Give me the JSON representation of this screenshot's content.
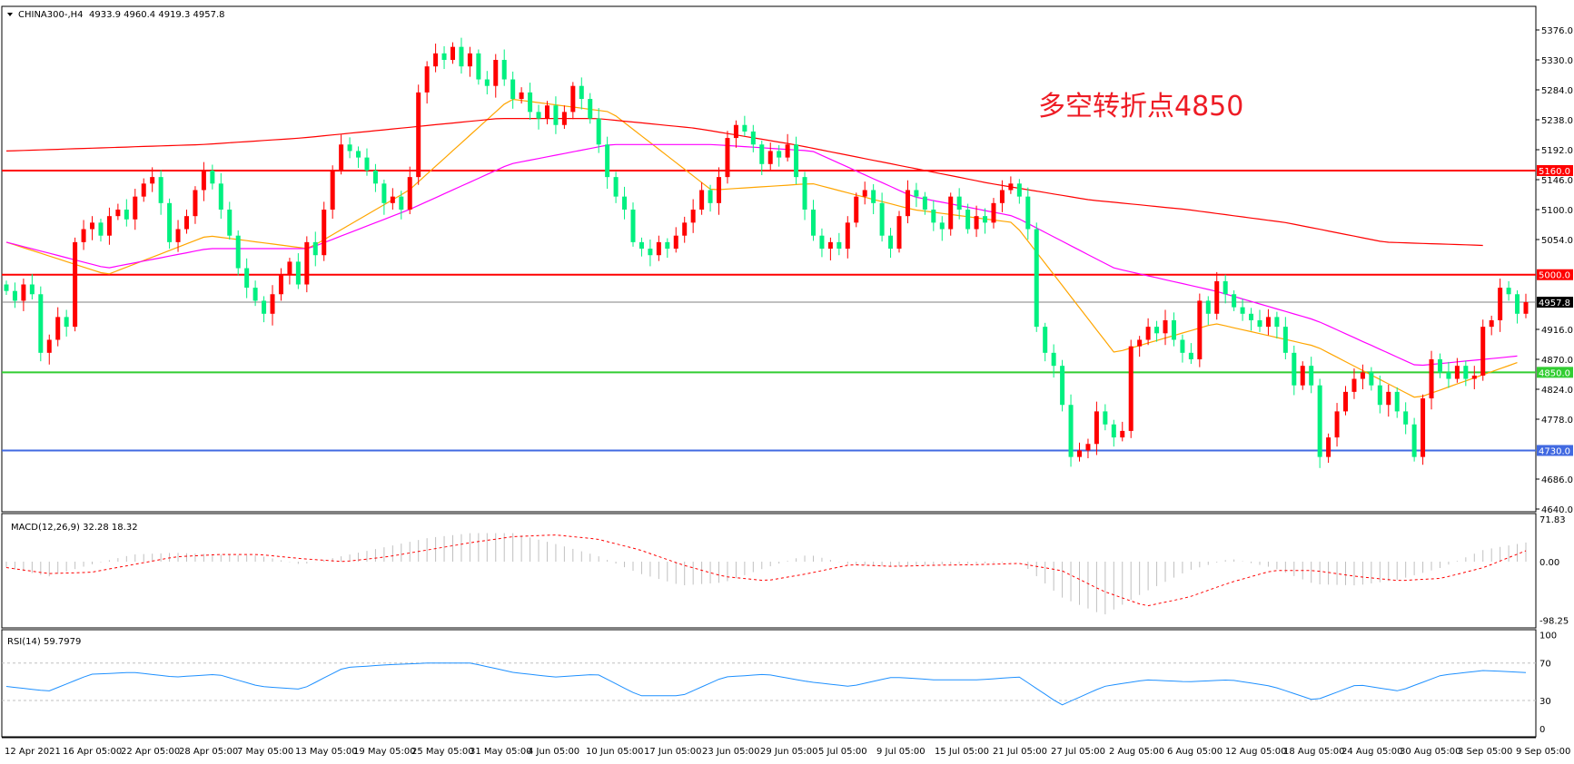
{
  "header": {
    "symbol": "CHINA300-,H4",
    "ohlc_text": "4933.9 4960.4 4919.3 4957.8"
  },
  "annotation": "多空转折点4850",
  "colors": {
    "bull": "#ff0000",
    "bear": "#00f080",
    "ma_fast": "#ffa500",
    "ma_mid": "#ff00ff",
    "ma_slow": "#ff0000",
    "macd_hist": "#c0c0c0",
    "macd_signal": "#ff0000",
    "rsi": "#1e90ff"
  },
  "chart_data": [
    {
      "type": "candlestick",
      "symbol": "CHINA300-",
      "timeframe": "H4",
      "ylim": [
        4640,
        5400
      ],
      "price_ticks": [
        "5376.0",
        "5330.0",
        "5284.0",
        "5238.0",
        "5192.0",
        "5146.0",
        "5100.0",
        "5054.0",
        "4916.0",
        "4870.0",
        "4824.0",
        "4778.0",
        "4686.0",
        "4640.0"
      ],
      "x_labels": [
        "12 Apr 2021",
        "16 Apr 05:00",
        "22 Apr 05:00",
        "28 Apr 05:00",
        "7 May 05:00",
        "13 May 05:00",
        "19 May 05:00",
        "25 May 05:00",
        "31 May 05:00",
        "4 Jun 05:00",
        "10 Jun 05:00",
        "17 Jun 05:00",
        "23 Jun 05:00",
        "29 Jun 05:00",
        "5 Jul 05:00",
        "9 Jul 05:00",
        "15 Jul 05:00",
        "21 Jul 05:00",
        "27 Jul 05:00",
        "2 Aug 05:00",
        "6 Aug 05:00",
        "12 Aug 05:00",
        "18 Aug 05:00",
        "24 Aug 05:00",
        "30 Aug 05:00",
        "3 Sep 05:00",
        "9 Sep 05:00"
      ],
      "close": [
        4975,
        4960,
        4985,
        4970,
        4880,
        4900,
        4935,
        4920,
        5050,
        5070,
        5080,
        5060,
        5090,
        5100,
        5085,
        5120,
        5140,
        5150,
        5110,
        5050,
        5070,
        5090,
        5130,
        5160,
        5140,
        5100,
        5060,
        5010,
        4980,
        4960,
        4940,
        4970,
        5000,
        5020,
        4985,
        5050,
        5030,
        5100,
        5160,
        5200,
        5190,
        5180,
        5160,
        5140,
        5110,
        5120,
        5100,
        5150,
        5280,
        5320,
        5340,
        5330,
        5350,
        5320,
        5340,
        5300,
        5290,
        5330,
        5300,
        5270,
        5280,
        5250,
        5240,
        5260,
        5230,
        5250,
        5290,
        5270,
        5240,
        5200,
        5150,
        5120,
        5100,
        5050,
        5040,
        5030,
        5050,
        5040,
        5060,
        5080,
        5100,
        5130,
        5110,
        5150,
        5210,
        5230,
        5220,
        5200,
        5170,
        5190,
        5180,
        5200,
        5150,
        5100,
        5060,
        5040,
        5050,
        5040,
        5080,
        5120,
        5130,
        5110,
        5060,
        5040,
        5090,
        5130,
        5120,
        5100,
        5080,
        5070,
        5120,
        5100,
        5070,
        5090,
        5080,
        5110,
        5130,
        5140,
        5120,
        5070,
        4920,
        4880,
        4860,
        4800,
        4720,
        4730,
        4740,
        4790,
        4770,
        4750,
        4760,
        4890,
        4900,
        4920,
        4910,
        4930,
        4900,
        4880,
        4870,
        4960,
        4940,
        4990,
        4970,
        4950,
        4940,
        4930,
        4920,
        4935,
        4920,
        4880,
        4830,
        4860,
        4830,
        4720,
        4750,
        4790,
        4820,
        4840,
        4850,
        4830,
        4800,
        4820,
        4790,
        4770,
        4720,
        4810,
        4870,
        4850,
        4840,
        4860,
        4840,
        4845,
        4920,
        4930,
        4980,
        4970,
        4940,
        4957.8
      ],
      "moving_averages": [
        {
          "color": "#ffa500",
          "values": [
            5050,
            5000,
            5060,
            5040,
            5130,
            5270,
            5250,
            5130,
            5140,
            5100,
            5080,
            4880,
            4925,
            4890,
            4810,
            4865
          ]
        },
        {
          "color": "#ff00ff",
          "values": [
            5050,
            5010,
            5040,
            5040,
            5100,
            5170,
            5200,
            5200,
            5190,
            5120,
            5090,
            5010,
            4975,
            4930,
            4860,
            4875
          ]
        },
        {
          "color": "#ff0000",
          "values": [
            5190,
            5195,
            5200,
            5210,
            5225,
            5240,
            5240,
            5225,
            5200,
            5170,
            5140,
            5115,
            5100,
            5080,
            5050,
            5045
          ]
        }
      ],
      "levels": [
        {
          "price": 5160.0,
          "label": "5160.0",
          "color": "#ff0000"
        },
        {
          "price": 5000.0,
          "label": "5000.0",
          "color": "#ff0000"
        },
        {
          "price": 4850.0,
          "label": "4850.0",
          "color": "#32cd32"
        },
        {
          "price": 4730.0,
          "label": "4730.0",
          "color": "#4169e1"
        },
        {
          "price": 4957.8,
          "label": "4957.8",
          "color": "#808080",
          "label_bg": "#000000",
          "current": true
        }
      ]
    },
    {
      "type": "bar",
      "title": "MACD(12,26,9) 32.28 18.32",
      "ylim": [
        -98.25,
        71.83
      ],
      "ticks": [
        "71.83",
        "0.00",
        "-98.25"
      ],
      "histogram": [
        -10,
        -25,
        -5,
        12,
        15,
        12,
        10,
        -5,
        10,
        25,
        40,
        48,
        48,
        30,
        10,
        -20,
        -40,
        -35,
        -10,
        12,
        -5,
        -8,
        -5,
        -3,
        0,
        -60,
        -90,
        -50,
        -15,
        5,
        -10,
        -38,
        -40,
        -30,
        -10,
        20,
        32.28
      ],
      "signal": [
        -10,
        -20,
        -18,
        -5,
        8,
        12,
        12,
        5,
        0,
        8,
        20,
        32,
        42,
        45,
        38,
        20,
        -5,
        -25,
        -32,
        -20,
        -5,
        -8,
        -6,
        -5,
        -3,
        -15,
        -50,
        -75,
        -60,
        -35,
        -15,
        -15,
        -25,
        -32,
        -28,
        -10,
        18.32
      ]
    },
    {
      "type": "line",
      "title": "RSI(14) 59.7979",
      "ylim": [
        0,
        100
      ],
      "ticks": [
        "100",
        "70",
        "30",
        "0"
      ],
      "levels": [
        70,
        30
      ],
      "values": [
        45,
        40,
        58,
        60,
        55,
        58,
        45,
        42,
        65,
        68,
        70,
        70,
        60,
        55,
        58,
        35,
        35,
        55,
        58,
        50,
        45,
        55,
        52,
        52,
        55,
        25,
        45,
        52,
        50,
        52,
        45,
        30,
        47,
        40,
        57,
        62,
        59.8
      ]
    }
  ]
}
